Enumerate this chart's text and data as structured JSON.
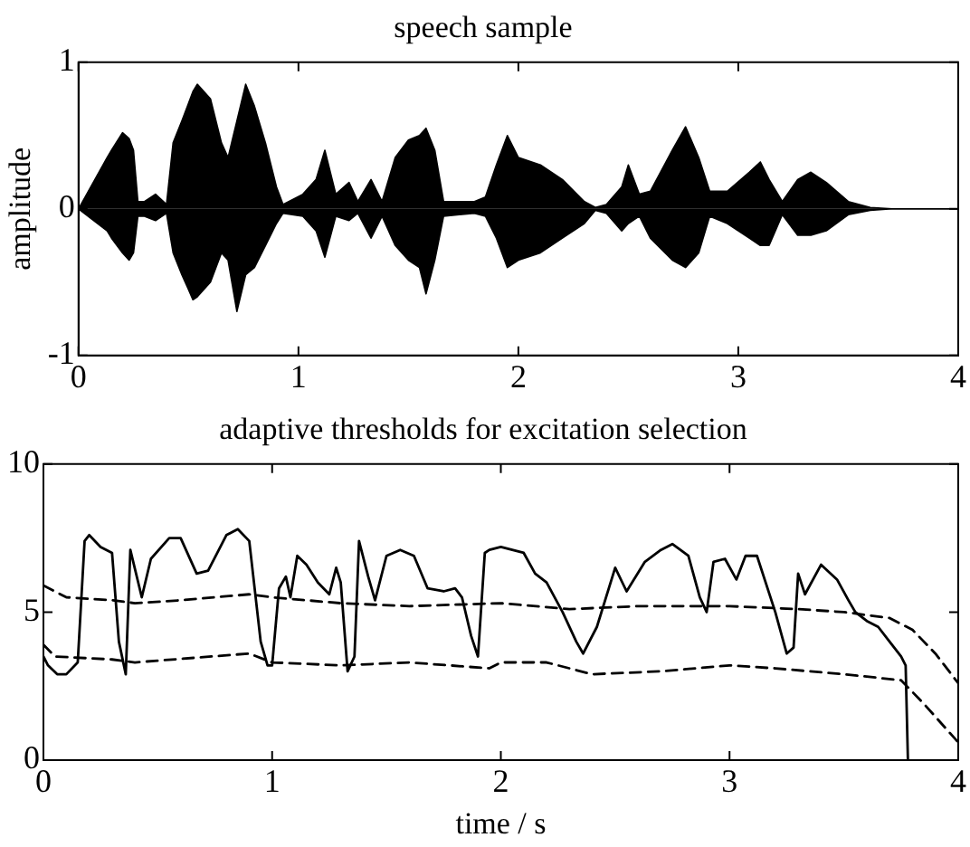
{
  "chart_data": [
    {
      "type": "area",
      "title": "speech sample",
      "ylabel": "amplitude",
      "xlim": [
        0,
        4
      ],
      "xticks": [
        0,
        1,
        2,
        3,
        4
      ],
      "ylim": [
        -1,
        1
      ],
      "yticks": [
        -1,
        0,
        1
      ],
      "grid": false,
      "legend": false,
      "x": [
        0,
        0.13,
        0.15,
        0.2,
        0.23,
        0.25,
        0.27,
        0.3,
        0.35,
        0.4,
        0.43,
        0.47,
        0.5,
        0.52,
        0.54,
        0.6,
        0.65,
        0.68,
        0.72,
        0.76,
        0.8,
        0.85,
        0.9,
        0.93,
        1.02,
        1.08,
        1.12,
        1.17,
        1.23,
        1.27,
        1.33,
        1.38,
        1.44,
        1.5,
        1.55,
        1.58,
        1.62,
        1.66,
        1.8,
        1.85,
        1.9,
        1.95,
        2.0,
        2.1,
        2.2,
        2.3,
        2.35,
        2.4,
        2.47,
        2.5,
        2.55,
        2.6,
        2.7,
        2.76,
        2.82,
        2.87,
        2.95,
        3.05,
        3.1,
        3.14,
        3.2,
        3.27,
        3.33,
        3.4,
        3.5,
        3.6,
        3.7,
        4
      ],
      "series": [
        {
          "color": "#000000",
          "values": [
            0,
            0.35,
            0.4,
            0.52,
            0.48,
            0.4,
            0.05,
            0.05,
            0.1,
            0.03,
            0.45,
            0.6,
            0.72,
            0.8,
            0.85,
            0.75,
            0.45,
            0.35,
            0.6,
            0.85,
            0.7,
            0.45,
            0.15,
            0.03,
            0.1,
            0.2,
            0.4,
            0.1,
            0.18,
            0.05,
            0.2,
            0.05,
            0.35,
            0.47,
            0.5,
            0.55,
            0.4,
            0.05,
            0.05,
            0.08,
            0.3,
            0.5,
            0.35,
            0.3,
            0.2,
            0.05,
            0.01,
            0.03,
            0.15,
            0.3,
            0.1,
            0.12,
            0.4,
            0.56,
            0.35,
            0.12,
            0.12,
            0.25,
            0.32,
            0.2,
            0.05,
            0.2,
            0.25,
            0.18,
            0.05,
            0.01,
            0,
            0
          ]
        },
        {
          "color": "#000000",
          "values": [
            0,
            -0.15,
            -0.2,
            -0.3,
            -0.35,
            -0.3,
            -0.05,
            -0.05,
            -0.08,
            -0.03,
            -0.3,
            -0.45,
            -0.55,
            -0.62,
            -0.6,
            -0.5,
            -0.3,
            -0.35,
            -0.7,
            -0.45,
            -0.4,
            -0.25,
            -0.1,
            -0.03,
            -0.05,
            -0.15,
            -0.33,
            -0.05,
            -0.08,
            -0.03,
            -0.2,
            -0.05,
            -0.25,
            -0.35,
            -0.4,
            -0.58,
            -0.35,
            -0.05,
            -0.03,
            -0.05,
            -0.2,
            -0.4,
            -0.35,
            -0.3,
            -0.2,
            -0.1,
            -0.01,
            -0.03,
            -0.15,
            -0.1,
            -0.05,
            -0.2,
            -0.35,
            -0.4,
            -0.3,
            -0.05,
            -0.1,
            -0.2,
            -0.25,
            -0.25,
            -0.04,
            -0.18,
            -0.18,
            -0.15,
            -0.04,
            -0.01,
            0,
            0
          ]
        }
      ]
    },
    {
      "type": "line",
      "title": "adaptive thresholds for excitation selection",
      "xlabel": "time / s",
      "xlim": [
        0,
        4
      ],
      "xticks": [
        0,
        1,
        2,
        3,
        4
      ],
      "ylim": [
        0,
        10
      ],
      "yticks": [
        0,
        5,
        10
      ],
      "grid": false,
      "legend": false,
      "marker": "none",
      "series": [
        {
          "color": "#000000",
          "line_style": "solid",
          "x": [
            0,
            0.02,
            0.06,
            0.1,
            0.15,
            0.18,
            0.2,
            0.25,
            0.3,
            0.33,
            0.36,
            0.38,
            0.43,
            0.47,
            0.55,
            0.6,
            0.67,
            0.72,
            0.8,
            0.85,
            0.9,
            0.95,
            0.98,
            1.0,
            1.03,
            1.06,
            1.08,
            1.11,
            1.15,
            1.2,
            1.25,
            1.28,
            1.3,
            1.33,
            1.36,
            1.38,
            1.42,
            1.45,
            1.5,
            1.56,
            1.62,
            1.68,
            1.75,
            1.8,
            1.83,
            1.87,
            1.9,
            1.93,
            1.95,
            2.0,
            2.1,
            2.15,
            2.2,
            2.27,
            2.33,
            2.36,
            2.42,
            2.5,
            2.55,
            2.63,
            2.7,
            2.75,
            2.82,
            2.87,
            2.9,
            2.93,
            2.98,
            3.03,
            3.07,
            3.12,
            3.2,
            3.25,
            3.28,
            3.3,
            3.33,
            3.4,
            3.47,
            3.52,
            3.55,
            3.6,
            3.65,
            3.7,
            3.75,
            3.77,
            3.78
          ],
          "values": [
            3.5,
            3.2,
            2.9,
            2.9,
            3.3,
            7.4,
            7.6,
            7.2,
            7.0,
            4.0,
            2.9,
            7.1,
            5.5,
            6.8,
            7.5,
            7.5,
            6.3,
            6.4,
            7.6,
            7.8,
            7.4,
            4.0,
            3.2,
            3.2,
            5.8,
            6.2,
            5.5,
            6.9,
            6.6,
            6.0,
            5.6,
            6.5,
            6.0,
            3.0,
            3.5,
            7.4,
            6.2,
            5.4,
            6.9,
            7.1,
            6.9,
            5.8,
            5.7,
            5.8,
            5.5,
            4.2,
            3.5,
            7.0,
            7.1,
            7.2,
            7.0,
            6.3,
            6.0,
            5.0,
            4.0,
            3.6,
            4.5,
            6.5,
            5.7,
            6.7,
            7.1,
            7.3,
            6.9,
            5.5,
            5.0,
            6.7,
            6.8,
            6.1,
            6.9,
            6.9,
            5.0,
            3.6,
            3.8,
            6.3,
            5.6,
            6.6,
            6.1,
            5.4,
            5.0,
            4.7,
            4.5,
            4.0,
            3.5,
            3.2,
            0
          ]
        },
        {
          "color": "#000000",
          "line_style": "dashed",
          "x": [
            0,
            0.1,
            0.3,
            0.4,
            0.6,
            0.9,
            1.0,
            1.3,
            1.6,
            2.0,
            2.3,
            2.6,
            3.0,
            3.3,
            3.5,
            3.7,
            3.8,
            3.9,
            4.0
          ],
          "values": [
            5.9,
            5.5,
            5.4,
            5.3,
            5.4,
            5.6,
            5.5,
            5.3,
            5.2,
            5.3,
            5.1,
            5.2,
            5.2,
            5.1,
            5.0,
            4.8,
            4.4,
            3.6,
            2.6
          ]
        },
        {
          "color": "#000000",
          "line_style": "dashed",
          "x": [
            0,
            0.05,
            0.3,
            0.4,
            0.9,
            1.0,
            1.3,
            1.6,
            1.95,
            2.0,
            2.2,
            2.4,
            2.7,
            3.0,
            3.2,
            3.5,
            3.75,
            3.85,
            4.0
          ],
          "values": [
            3.9,
            3.5,
            3.4,
            3.3,
            3.6,
            3.3,
            3.2,
            3.3,
            3.1,
            3.3,
            3.3,
            2.9,
            3.0,
            3.2,
            3.1,
            2.9,
            2.7,
            1.9,
            0.6
          ]
        }
      ]
    }
  ]
}
